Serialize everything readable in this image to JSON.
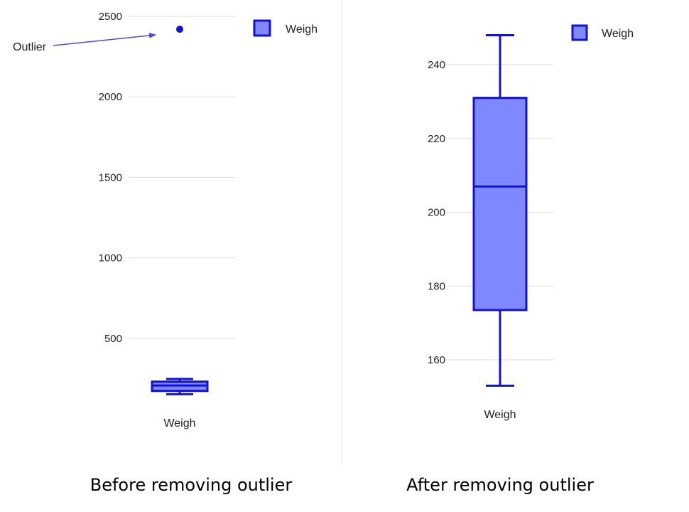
{
  "captions": {
    "left": "Before removing outlier",
    "right": "After removing outlier"
  },
  "annotation": {
    "text": "Outlier"
  },
  "colors": {
    "box_stroke": "#1212d6",
    "box_fill": "#8088ff",
    "outlier": "#1212d6",
    "grid": "#dddddd",
    "divider": "#eeeeee",
    "annotation_arrow": "#4a4ae8"
  },
  "chart_data": [
    {
      "type": "box",
      "caption": "Before removing outlier",
      "category": "Weigh",
      "legend": {
        "label": "Weigh",
        "placement": "top-right"
      },
      "yticks": [
        500,
        1000,
        1500,
        2000,
        2500
      ],
      "ylim": [
        0,
        2550
      ],
      "grid": true,
      "box": {
        "min": 153,
        "q1": 173.5,
        "median": 207,
        "q3": 231,
        "max": 248
      },
      "outliers": [
        2420
      ]
    },
    {
      "type": "box",
      "caption": "After removing outlier",
      "category": "Weigh",
      "legend": {
        "label": "Weigh",
        "placement": "top-right"
      },
      "yticks": [
        160,
        180,
        200,
        220,
        240
      ],
      "ylim": [
        148,
        250
      ],
      "grid": true,
      "box": {
        "min": 153,
        "q1": 173.5,
        "median": 207,
        "q3": 231,
        "max": 248
      },
      "outliers": []
    }
  ]
}
